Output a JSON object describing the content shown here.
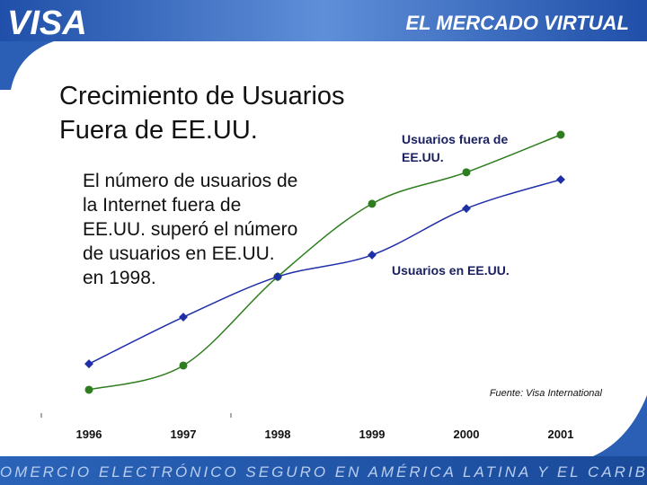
{
  "slide": {
    "logo": "VISA",
    "header": "EL MERCADO VIRTUAL",
    "title": [
      "Crecimiento de Usuarios",
      "Fuera de EE.UU."
    ],
    "body": [
      "El número de usuarios de",
      "la Internet fuera de",
      "EE.UU. superó el número",
      "de usuarios en EE.UU.",
      "en 1998."
    ],
    "footer": "COMERCIO ELECTRÓNICO SEGURO EN AMÉRICA LATINA Y EL CARIBE"
  },
  "chart_data": {
    "type": "line",
    "categories": [
      "1996",
      "1997",
      "1998",
      "1999",
      "2000",
      "2001"
    ],
    "series": [
      {
        "name": "Usuarios fuera de EE.UU.",
        "color": "#2e7d1e",
        "values": [
          8.4,
          17.1,
          49,
          75.2,
          86.5,
          100
        ]
      },
      {
        "name": "Usuarios en EE.UU.",
        "color": "#1f2fa8",
        "values": [
          17.7,
          34.5,
          49,
          56.8,
          73.5,
          83.9
        ]
      }
    ],
    "ylim": [
      0,
      100
    ],
    "source": "Fuente: Visa International"
  }
}
